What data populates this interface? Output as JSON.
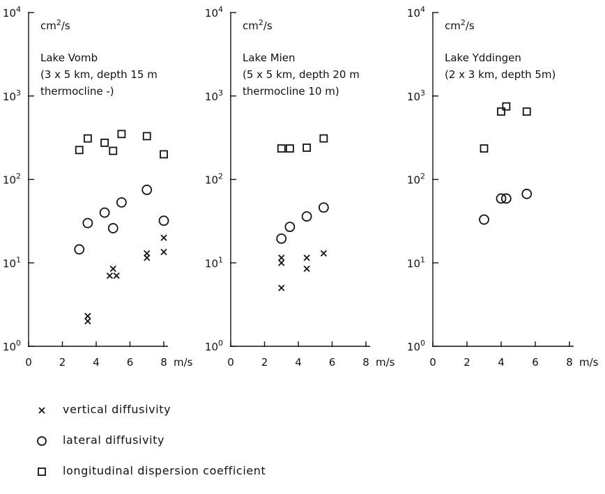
{
  "chart_data": [
    {
      "type": "scatter",
      "y_scale": "log",
      "xlim": [
        0,
        8
      ],
      "ylim": [
        1,
        10000
      ],
      "y_unit": "cm²/s",
      "x_unit": "m/s",
      "x_ticks": [
        "0",
        "2",
        "4",
        "6",
        "8"
      ],
      "y_ticks": [
        {
          "base": "10",
          "exp": "0"
        },
        {
          "base": "10",
          "exp": "1"
        },
        {
          "base": "10",
          "exp": "2"
        },
        {
          "base": "10",
          "exp": "3"
        },
        {
          "base": "10",
          "exp": "4"
        }
      ],
      "annotation": [
        "Lake Vomb",
        "(3 x 5 km, depth 15 m",
        "thermocline -)"
      ],
      "series": [
        {
          "marker": "x",
          "points": [
            [
              3.5,
              2.3
            ],
            [
              3.5,
              2.0
            ],
            [
              4.8,
              7.0
            ],
            [
              5.2,
              7.0
            ],
            [
              5.0,
              8.5
            ],
            [
              7.0,
              11.5
            ],
            [
              7.0,
              13.0
            ],
            [
              8.0,
              13.5
            ],
            [
              8.0,
              20.0
            ]
          ]
        },
        {
          "marker": "o",
          "points": [
            [
              3.0,
              14.5
            ],
            [
              3.5,
              30
            ],
            [
              4.5,
              40
            ],
            [
              5.0,
              26
            ],
            [
              5.5,
              53
            ],
            [
              7.0,
              75
            ],
            [
              8.0,
              32
            ]
          ]
        },
        {
          "marker": "square",
          "points": [
            [
              3.0,
              225
            ],
            [
              3.5,
              310
            ],
            [
              4.5,
              275
            ],
            [
              5.0,
              220
            ],
            [
              5.5,
              350
            ],
            [
              7.0,
              330
            ],
            [
              8.0,
              200
            ]
          ]
        }
      ]
    },
    {
      "type": "scatter",
      "y_scale": "log",
      "xlim": [
        0,
        8
      ],
      "ylim": [
        1,
        10000
      ],
      "y_unit": "cm²/s",
      "x_unit": "m/s",
      "x_ticks": [
        "0",
        "2",
        "4",
        "6",
        "8"
      ],
      "y_ticks": [
        {
          "base": "10",
          "exp": "0"
        },
        {
          "base": "10",
          "exp": "1"
        },
        {
          "base": "10",
          "exp": "2"
        },
        {
          "base": "10",
          "exp": "3"
        },
        {
          "base": "10",
          "exp": "4"
        }
      ],
      "annotation": [
        "Lake Mien",
        "(5 x 5 km, depth 20 m",
        "thermocline 10 m)"
      ],
      "series": [
        {
          "marker": "x",
          "points": [
            [
              3.0,
              5.0
            ],
            [
              3.0,
              10.0
            ],
            [
              3.0,
              11.5
            ],
            [
              4.5,
              8.5
            ],
            [
              4.5,
              11.5
            ],
            [
              5.5,
              13.0
            ]
          ]
        },
        {
          "marker": "o",
          "points": [
            [
              3.0,
              19.5
            ],
            [
              3.5,
              27
            ],
            [
              4.5,
              36
            ],
            [
              5.5,
              46
            ]
          ]
        },
        {
          "marker": "square",
          "points": [
            [
              3.0,
              235
            ],
            [
              3.5,
              235
            ],
            [
              4.5,
              240
            ],
            [
              5.5,
              310
            ]
          ]
        }
      ]
    },
    {
      "type": "scatter",
      "y_scale": "log",
      "xlim": [
        0,
        8
      ],
      "ylim": [
        1,
        10000
      ],
      "y_unit": "cm²/s",
      "x_unit": "m/s",
      "x_ticks": [
        "0",
        "2",
        "4",
        "6",
        "8"
      ],
      "y_ticks": [
        {
          "base": "10",
          "exp": "0"
        },
        {
          "base": "10",
          "exp": "1"
        },
        {
          "base": "10",
          "exp": "2"
        },
        {
          "base": "10",
          "exp": "3"
        },
        {
          "base": "10",
          "exp": "4"
        }
      ],
      "annotation": [
        "Lake Yddingen",
        "(2 x 3 km, depth 5m)"
      ],
      "series": [
        {
          "marker": "x",
          "points": []
        },
        {
          "marker": "o",
          "points": [
            [
              3.0,
              33
            ],
            [
              4.0,
              59
            ],
            [
              4.3,
              59
            ],
            [
              5.5,
              67
            ]
          ]
        },
        {
          "marker": "square",
          "points": [
            [
              3.0,
              235
            ],
            [
              4.0,
              650
            ],
            [
              4.3,
              750
            ],
            [
              5.5,
              650
            ]
          ]
        }
      ]
    }
  ],
  "legend": [
    {
      "marker": "x",
      "label": "vertical diffusivity"
    },
    {
      "marker": "o",
      "label": "lateral diffusivity"
    },
    {
      "marker": "square",
      "label": "longitudinal dispersion coefficient"
    }
  ]
}
